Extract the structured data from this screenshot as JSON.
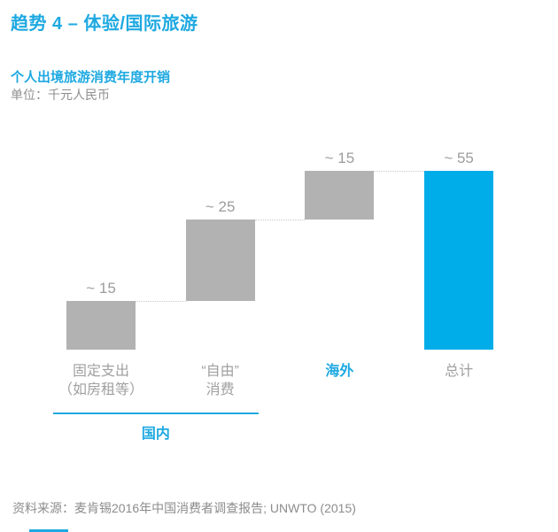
{
  "colors": {
    "accent": "#1ea9e1",
    "bar_accent": "#00ade9",
    "bar_gray": "#b2b2b2",
    "value_label": "#9c9c9c",
    "category_label": "#a0a0a0",
    "connector": "#c9c9c9",
    "unit_text": "#8f8f8f",
    "source_text": "#8c8c8c"
  },
  "header": {
    "title": "趋势 4 – 体验/国际旅游"
  },
  "chart_data": {
    "type": "bar",
    "subtype": "waterfall",
    "title": "个人出境旅游消费年度开销",
    "unit_label": "单位：千元人民币",
    "ylabel": "千元人民币",
    "ylim": [
      0,
      60
    ],
    "grid": false,
    "legend": false,
    "categories": [
      "固定支出（如房租等）",
      "“自由”消费",
      "海外",
      "总计"
    ],
    "values": [
      15,
      25,
      15,
      55
    ],
    "bars": [
      {
        "id": "fixed-spend",
        "label_lines": [
          "固定支出",
          "（如房租等）"
        ],
        "label_style": "gray",
        "display_value": "~ 15",
        "value": 15,
        "start": 0,
        "end": 15,
        "color": "gray"
      },
      {
        "id": "free-spend",
        "label_lines": [
          "“自由”",
          "消费"
        ],
        "label_style": "gray",
        "display_value": "~ 25",
        "value": 25,
        "start": 15,
        "end": 40,
        "color": "gray"
      },
      {
        "id": "overseas",
        "label_lines": [
          "海外"
        ],
        "label_style": "accent",
        "display_value": "~ 15",
        "value": 15,
        "start": 40,
        "end": 55,
        "color": "gray"
      },
      {
        "id": "total",
        "label_lines": [
          "总计"
        ],
        "label_style": "gray",
        "display_value": "~ 55",
        "value": 55,
        "start": 0,
        "end": 55,
        "color": "accent"
      }
    ],
    "group_bracket": {
      "label": "国内",
      "from_bar": 0,
      "to_bar": 1
    }
  },
  "footer": {
    "source": "资料来源：麦肯锡2016年中国消费者调查报告; UNWTO (2015)"
  }
}
